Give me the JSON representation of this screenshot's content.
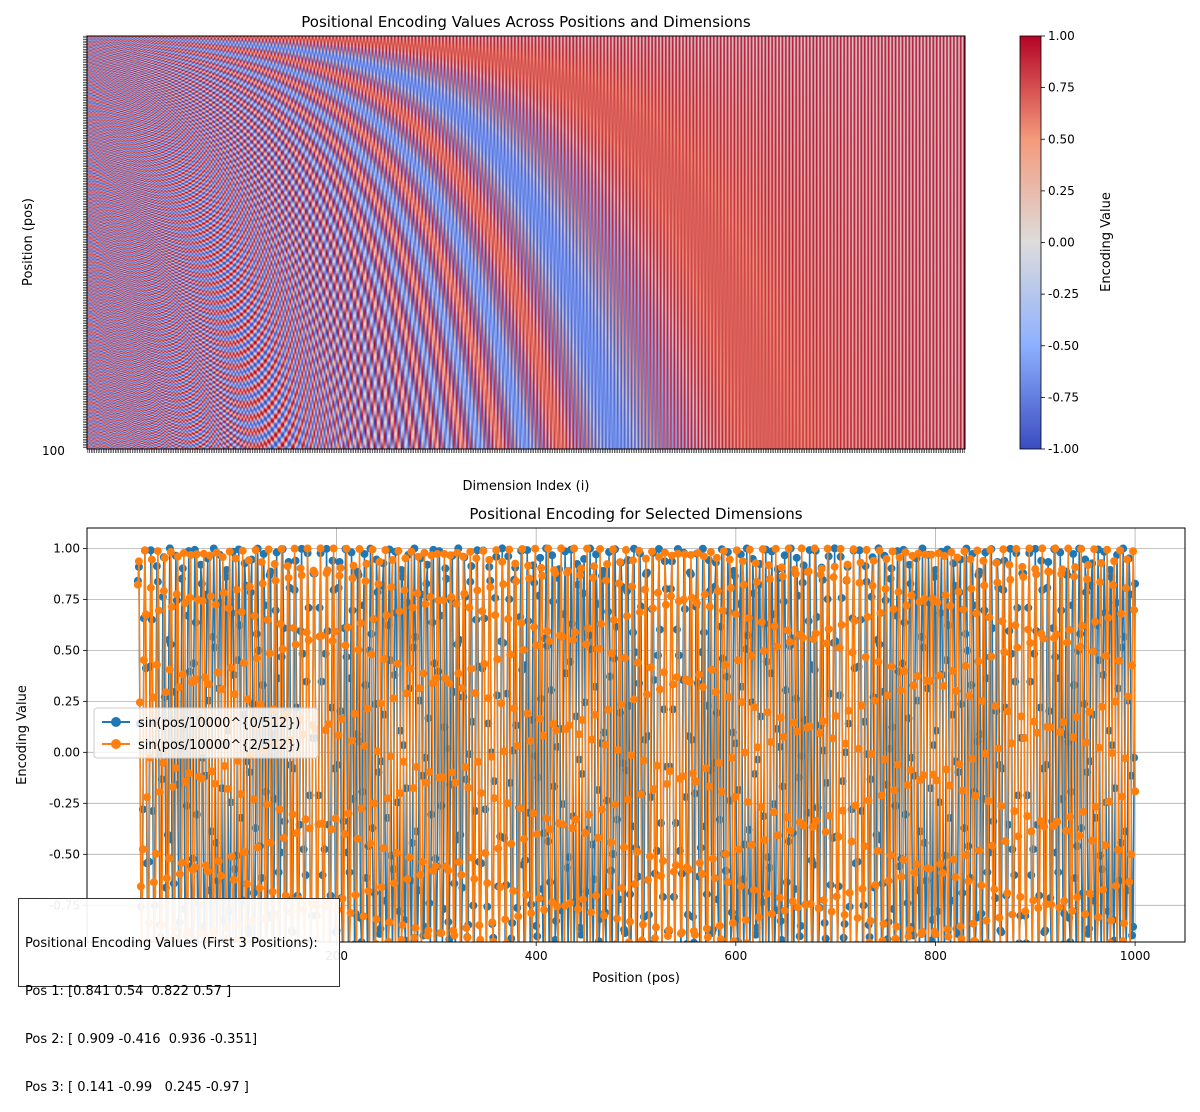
{
  "chart_data": [
    {
      "type": "heatmap",
      "title": "Positional Encoding Values Across Positions and Dimensions",
      "xlabel": "Dimension Index (i)",
      "ylabel": "Position (pos)",
      "d_model": 512,
      "positions": 1000,
      "colormap": "coolwarm",
      "colorbar": {
        "label": "Encoding Value",
        "vmin": -1.0,
        "vmax": 1.0,
        "ticks": [
          "-1.00",
          "-0.75",
          "-0.50",
          "-0.25",
          "0.00",
          "0.25",
          "0.50",
          "0.75",
          "1.00"
        ]
      },
      "bottom_ylabel_text": "100"
    },
    {
      "type": "line",
      "title": "Positional Encoding for Selected Dimensions",
      "xlabel": "Position (pos)",
      "ylabel": "Encoding Value",
      "xlim": [
        -50,
        1050
      ],
      "ylim": [
        -0.93,
        1.1
      ],
      "xticks": [
        200,
        400,
        600,
        800,
        1000
      ],
      "yticks": [
        -0.75,
        -0.5,
        -0.25,
        0.0,
        0.25,
        0.5,
        0.75,
        1.0
      ],
      "grid": true,
      "legend_position": "center-left",
      "series": [
        {
          "name": "sin(pos/10000^{0/512})",
          "dimension": 0,
          "color": "#1f77b4",
          "x_range": [
            1,
            1000
          ]
        },
        {
          "name": "sin(pos/10000^{2/512})",
          "dimension": 2,
          "color": "#ff7f0e",
          "x_range": [
            1,
            1000
          ]
        }
      ]
    }
  ],
  "info_box": {
    "heading": "Positional Encoding Values (First 3 Positions):",
    "lines": [
      "Pos 1: [0.841 0.54  0.822 0.57 ]",
      "Pos 2: [ 0.909 -0.416  0.936 -0.351]",
      "Pos 3: [ 0.141 -0.99   0.245 -0.97 ]"
    ]
  }
}
